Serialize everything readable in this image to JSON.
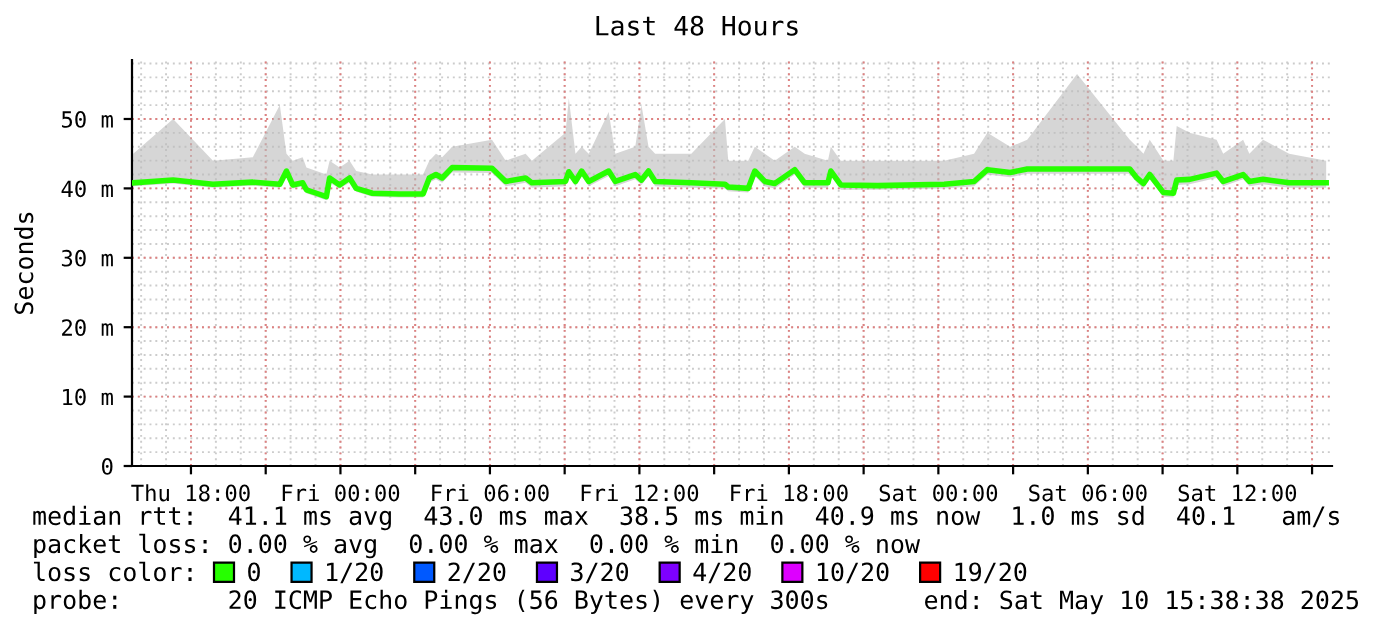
{
  "chart_data": {
    "type": "line",
    "title": "Last 48 Hours",
    "ylabel": "Seconds",
    "legend_title": "loss color:",
    "x": [
      "2025-05-08T15:41",
      "2025-05-08T17:17",
      "2025-05-08T18:53",
      "2025-05-08T20:29",
      "2025-05-08T21:34",
      "2025-05-08T21:50",
      "2025-05-08T22:05",
      "2025-05-08T22:29",
      "2025-05-08T22:38",
      "2025-05-08T23:02",
      "2025-05-08T23:26",
      "2025-05-08T23:34",
      "2025-05-08T23:58",
      "2025-05-09T00:22",
      "2025-05-09T00:38",
      "2025-05-09T01:17",
      "2025-05-09T02:22",
      "2025-05-09T03:19",
      "2025-05-09T03:34",
      "2025-05-09T03:50",
      "2025-05-09T04:05",
      "2025-05-09T04:29",
      "2025-05-09T06:05",
      "2025-05-09T06:38",
      "2025-05-09T07:26",
      "2025-05-09T07:41",
      "2025-05-09T09:02",
      "2025-05-09T09:10",
      "2025-05-09T09:26",
      "2025-05-09T09:41",
      "2025-05-09T09:58",
      "2025-05-09T10:46",
      "2025-05-09T11:02",
      "2025-05-09T11:50",
      "2025-05-09T12:05",
      "2025-05-09T12:22",
      "2025-05-09T12:38",
      "2025-05-09T14:05",
      "2025-05-09T15:26",
      "2025-05-09T15:34",
      "2025-05-09T16:22",
      "2025-05-09T16:38",
      "2025-05-09T17:02",
      "2025-05-09T17:26",
      "2025-05-09T18:14",
      "2025-05-09T18:38",
      "2025-05-09T19:34",
      "2025-05-09T19:41",
      "2025-05-09T20:05",
      "2025-05-09T21:34",
      "2025-05-10T00:14",
      "2025-05-10T01:26",
      "2025-05-10T01:58",
      "2025-05-10T02:53",
      "2025-05-10T03:34",
      "2025-05-10T05:34",
      "2025-05-10T07:41",
      "2025-05-10T07:58",
      "2025-05-10T08:14",
      "2025-05-10T08:29",
      "2025-05-10T09:02",
      "2025-05-10T09:26",
      "2025-05-10T09:34",
      "2025-05-10T10:05",
      "2025-05-10T11:10",
      "2025-05-10T11:26",
      "2025-05-10T12:14",
      "2025-05-10T12:29",
      "2025-05-10T13:02",
      "2025-05-10T14:05",
      "2025-05-10T15:34"
    ],
    "series": [
      {
        "name": "0",
        "color": "#26ff00",
        "values": [
          40.8,
          41.2,
          40.6,
          40.9,
          40.6,
          42.5,
          40.5,
          40.8,
          39.8,
          39.3,
          38.8,
          41.5,
          40.5,
          41.5,
          40.0,
          39.3,
          39.2,
          39.2,
          41.5,
          42.0,
          41.5,
          43.0,
          42.9,
          41.0,
          41.5,
          40.8,
          41.0,
          42.4,
          41.0,
          42.5,
          41.0,
          42.5,
          41.0,
          42.0,
          41.2,
          42.5,
          41.0,
          40.8,
          40.6,
          40.2,
          40.0,
          42.5,
          41.0,
          40.7,
          42.7,
          40.8,
          40.8,
          42.5,
          40.5,
          40.4,
          40.6,
          41.0,
          42.7,
          42.3,
          42.8,
          42.8,
          42.8,
          41.5,
          40.7,
          42.0,
          39.4,
          39.3,
          41.2,
          41.3,
          42.2,
          41.0,
          42.0,
          41.0,
          41.3,
          40.8,
          40.8
        ],
        "lower": [
          40.3,
          40.7,
          40.1,
          40.4,
          40.1,
          41.8,
          40.0,
          40.3,
          39.3,
          38.8,
          38.3,
          40.8,
          40.0,
          40.8,
          39.5,
          38.8,
          38.7,
          38.7,
          40.8,
          41.3,
          40.8,
          42.3,
          42.2,
          40.3,
          40.8,
          40.1,
          40.3,
          41.7,
          40.3,
          41.8,
          40.3,
          41.8,
          40.3,
          41.3,
          40.5,
          41.8,
          40.3,
          40.1,
          40.0,
          39.6,
          39.4,
          41.8,
          40.3,
          40.0,
          42.0,
          40.1,
          40.1,
          41.8,
          39.8,
          39.8,
          40.0,
          40.3,
          42.0,
          41.6,
          42.1,
          42.1,
          42.1,
          40.8,
          40.0,
          41.3,
          38.8,
          38.7,
          40.5,
          40.6,
          41.5,
          40.3,
          41.3,
          40.3,
          40.6,
          40.1,
          40.1
        ],
        "upper": [
          45.0,
          50.0,
          44.0,
          44.5,
          52.0,
          45.0,
          44.0,
          44.5,
          43.0,
          42.5,
          42.0,
          44.0,
          43.0,
          44.0,
          42.5,
          42.0,
          42.0,
          42.0,
          44.0,
          45.0,
          44.5,
          46.0,
          47.0,
          44.0,
          45.0,
          44.0,
          48.0,
          53.0,
          45.0,
          46.0,
          45.0,
          51.0,
          45.0,
          46.0,
          52.0,
          46.0,
          45.0,
          45.0,
          50.0,
          44.0,
          44.0,
          46.0,
          45.0,
          44.0,
          46.0,
          45.0,
          44.0,
          46.0,
          44.0,
          44.0,
          44.0,
          45.0,
          48.0,
          46.0,
          47.0,
          56.5,
          47.0,
          46.0,
          45.0,
          47.0,
          44.0,
          44.0,
          49.0,
          48.0,
          47.0,
          45.0,
          47.0,
          45.0,
          47.0,
          45.0,
          44.0
        ]
      },
      {
        "name": "1/20",
        "color": "#00b8ff",
        "values": [
          null,
          null,
          null,
          null,
          null,
          null,
          null,
          null,
          null,
          null,
          null,
          null,
          null,
          null,
          null,
          null,
          null,
          null,
          null,
          null,
          null,
          null,
          null,
          null,
          null,
          null,
          null,
          null,
          null,
          null,
          null,
          null,
          null,
          null,
          null,
          null,
          null,
          null,
          null,
          null,
          null,
          null,
          null,
          null,
          null,
          null,
          null,
          null,
          null,
          null,
          null,
          null,
          null,
          null,
          null,
          null,
          null,
          null,
          null,
          null,
          null,
          null,
          null,
          null,
          null,
          null,
          null,
          null,
          null,
          null,
          null
        ]
      },
      {
        "name": "2/20",
        "color": "#0059ff",
        "values": [
          null,
          null,
          null,
          null,
          null,
          null,
          null,
          null,
          null,
          null,
          null,
          null,
          null,
          null,
          null,
          null,
          null,
          null,
          null,
          null,
          null,
          null,
          null,
          null,
          null,
          null,
          null,
          null,
          null,
          null,
          null,
          null,
          null,
          null,
          null,
          null,
          null,
          null,
          null,
          null,
          null,
          null,
          null,
          null,
          null,
          null,
          null,
          null,
          null,
          null,
          null,
          null,
          null,
          null,
          null,
          null,
          null,
          null,
          null,
          null,
          null,
          null,
          null,
          null,
          null,
          null,
          null,
          null,
          null,
          null,
          null
        ]
      },
      {
        "name": "3/20",
        "color": "#5e00ff",
        "values": [
          null,
          null,
          null,
          null,
          null,
          null,
          null,
          null,
          null,
          null,
          null,
          null,
          null,
          null,
          null,
          null,
          null,
          null,
          null,
          null,
          null,
          null,
          null,
          null,
          null,
          null,
          null,
          null,
          null,
          null,
          null,
          null,
          null,
          null,
          null,
          null,
          null,
          null,
          null,
          null,
          null,
          null,
          null,
          null,
          null,
          null,
          null,
          null,
          null,
          null,
          null,
          null,
          null,
          null,
          null,
          null,
          null,
          null,
          null,
          null,
          null,
          null,
          null,
          null,
          null,
          null,
          null,
          null,
          null,
          null,
          null
        ]
      },
      {
        "name": "4/20",
        "color": "#7e00ff",
        "values": [
          null,
          null,
          null,
          null,
          null,
          null,
          null,
          null,
          null,
          null,
          null,
          null,
          null,
          null,
          null,
          null,
          null,
          null,
          null,
          null,
          null,
          null,
          null,
          null,
          null,
          null,
          null,
          null,
          null,
          null,
          null,
          null,
          null,
          null,
          null,
          null,
          null,
          null,
          null,
          null,
          null,
          null,
          null,
          null,
          null,
          null,
          null,
          null,
          null,
          null,
          null,
          null,
          null,
          null,
          null,
          null,
          null,
          null,
          null,
          null,
          null,
          null,
          null,
          null,
          null,
          null,
          null,
          null,
          null,
          null,
          null
        ]
      },
      {
        "name": "10/20",
        "color": "#dd00ff",
        "values": [
          null,
          null,
          null,
          null,
          null,
          null,
          null,
          null,
          null,
          null,
          null,
          null,
          null,
          null,
          null,
          null,
          null,
          null,
          null,
          null,
          null,
          null,
          null,
          null,
          null,
          null,
          null,
          null,
          null,
          null,
          null,
          null,
          null,
          null,
          null,
          null,
          null,
          null,
          null,
          null,
          null,
          null,
          null,
          null,
          null,
          null,
          null,
          null,
          null,
          null,
          null,
          null,
          null,
          null,
          null,
          null,
          null,
          null,
          null,
          null,
          null,
          null,
          null,
          null,
          null,
          null,
          null,
          null,
          null,
          null,
          null
        ]
      },
      {
        "name": "19/20",
        "color": "#ff0000",
        "values": [
          null,
          null,
          null,
          null,
          null,
          null,
          null,
          null,
          null,
          null,
          null,
          null,
          null,
          null,
          null,
          null,
          null,
          null,
          null,
          null,
          null,
          null,
          null,
          null,
          null,
          null,
          null,
          null,
          null,
          null,
          null,
          null,
          null,
          null,
          null,
          null,
          null,
          null,
          null,
          null,
          null,
          null,
          null,
          null,
          null,
          null,
          null,
          null,
          null,
          null,
          null,
          null,
          null,
          null,
          null,
          null,
          null,
          null,
          null,
          null,
          null,
          null,
          null,
          null,
          null,
          null,
          null,
          null,
          null,
          null,
          null
        ]
      }
    ],
    "xlim": [
      "2025-05-08T15:38",
      "2025-05-10T15:48"
    ],
    "xticks": [
      {
        "value": "2025-05-08T18:00",
        "label": "Thu 18:00"
      },
      {
        "value": "2025-05-08T21:00",
        "label": null
      },
      {
        "value": "2025-05-09T00:00",
        "label": "Fri 00:00"
      },
      {
        "value": "2025-05-09T03:00",
        "label": null
      },
      {
        "value": "2025-05-09T06:00",
        "label": "Fri 06:00"
      },
      {
        "value": "2025-05-09T09:00",
        "label": null
      },
      {
        "value": "2025-05-09T12:00",
        "label": "Fri 12:00"
      },
      {
        "value": "2025-05-09T15:00",
        "label": null
      },
      {
        "value": "2025-05-09T18:00",
        "label": "Fri 18:00"
      },
      {
        "value": "2025-05-09T21:00",
        "label": null
      },
      {
        "value": "2025-05-10T00:00",
        "label": "Sat 00:00"
      },
      {
        "value": "2025-05-10T03:00",
        "label": null
      },
      {
        "value": "2025-05-10T06:00",
        "label": "Sat 06:00"
      },
      {
        "value": "2025-05-10T09:00",
        "label": null
      },
      {
        "value": "2025-05-10T12:00",
        "label": "Sat 12:00"
      },
      {
        "value": "2025-05-10T15:00",
        "label": null
      }
    ],
    "ylim": [
      0,
      58.5
    ],
    "yticks": [
      0,
      {
        "value": 10,
        "label": "10 m"
      },
      {
        "value": 20,
        "label": "20 m"
      },
      {
        "value": 30,
        "label": "30 m"
      },
      {
        "value": 40,
        "label": "40 m"
      },
      {
        "value": 50,
        "label": "50 m"
      }
    ],
    "grid": true,
    "legend": "bottom",
    "marker": "none",
    "line_style": "solid",
    "annotations": [
      "median rtt:  41.1 ms avg  43.0 ms max  38.5 ms min  40.9 ms now  1.0 ms sd  40.1   am/s",
      "packet loss: 0.00 % avg  0.00 % max  0.00 % min  0.00 % now",
      "probe:       20 ICMP Echo Pings (56 Bytes) every 300s",
      "end: Sat May 10 15:38:38 2025"
    ]
  }
}
